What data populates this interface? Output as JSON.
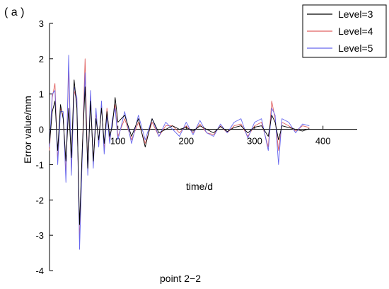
{
  "panel_label": "( a )",
  "chart_data": {
    "type": "line",
    "title": "point 2−2",
    "xlabel": "time/d",
    "ylabel": "Error value/mm",
    "xlim": [
      0,
      450
    ],
    "ylim": [
      -4,
      3
    ],
    "xticks": [
      100,
      200,
      300,
      400
    ],
    "yticks": [
      -4,
      -3,
      -2,
      -1,
      0,
      1,
      2,
      3
    ],
    "xtick_labels": [
      "100",
      "200",
      "300",
      "400"
    ],
    "ytick_labels": [
      "-4",
      "-3",
      "-2",
      "-1",
      "0",
      "1",
      "2",
      "3"
    ],
    "grid": false,
    "legend_position": "top-right",
    "series": [
      {
        "name": "Level=3",
        "color": "#000000",
        "x": [
          0,
          4,
          8,
          12,
          16,
          20,
          24,
          28,
          32,
          36,
          40,
          44,
          48,
          52,
          56,
          60,
          64,
          68,
          72,
          76,
          80,
          84,
          88,
          92,
          96,
          100,
          110,
          120,
          130,
          140,
          150,
          160,
          170,
          180,
          190,
          200,
          210,
          220,
          230,
          240,
          250,
          260,
          270,
          280,
          290,
          300,
          310,
          320,
          325,
          330,
          335,
          340,
          350,
          360,
          370,
          380
        ],
        "values": [
          -0.4,
          0.5,
          0.8,
          -0.6,
          0.7,
          0.3,
          -0.9,
          0.6,
          -0.8,
          1.4,
          0.6,
          -2.7,
          -0.5,
          1.2,
          -1.1,
          0.8,
          -0.9,
          0.3,
          -0.3,
          0.6,
          -0.4,
          0.5,
          -0.2,
          0.1,
          0.9,
          0.2,
          0.4,
          -0.2,
          0.3,
          -0.5,
          0.3,
          -0.1,
          0.0,
          0.1,
          0.0,
          0.05,
          -0.05,
          0.1,
          0.0,
          -0.1,
          0.08,
          -0.06,
          0.05,
          0.1,
          -0.1,
          0.06,
          0.1,
          -0.2,
          0.4,
          0.2,
          -0.3,
          0.1,
          0.05,
          0.0,
          -0.05,
          0.02
        ]
      },
      {
        "name": "Level=4",
        "color": "#e06060",
        "x": [
          0,
          4,
          8,
          12,
          16,
          20,
          24,
          28,
          32,
          36,
          40,
          44,
          48,
          52,
          56,
          60,
          64,
          68,
          72,
          76,
          80,
          84,
          88,
          92,
          96,
          100,
          110,
          120,
          130,
          140,
          150,
          160,
          170,
          180,
          190,
          200,
          210,
          220,
          230,
          240,
          250,
          260,
          270,
          280,
          290,
          300,
          310,
          320,
          325,
          330,
          335,
          340,
          350,
          360,
          370,
          380
        ],
        "values": [
          -0.6,
          0.9,
          1.3,
          -0.9,
          0.6,
          0.4,
          -1.3,
          1.8,
          -1.2,
          1.1,
          0.8,
          -3.2,
          -0.6,
          2.0,
          -1.2,
          1.0,
          -1.0,
          0.5,
          -0.4,
          0.7,
          -0.6,
          0.6,
          -0.3,
          0.2,
          0.7,
          -0.2,
          0.3,
          -0.3,
          0.2,
          -0.4,
          0.2,
          -0.2,
          0.1,
          0.1,
          -0.1,
          0.1,
          -0.1,
          0.15,
          -0.1,
          -0.15,
          0.1,
          -0.1,
          0.1,
          0.15,
          -0.2,
          0.1,
          0.2,
          -0.5,
          0.8,
          0.3,
          -0.6,
          0.2,
          0.1,
          -0.05,
          0.1,
          0.05
        ]
      },
      {
        "name": "Level=5",
        "color": "#6666ee",
        "x": [
          0,
          4,
          8,
          12,
          16,
          20,
          24,
          28,
          32,
          36,
          40,
          44,
          48,
          52,
          56,
          60,
          64,
          68,
          72,
          76,
          80,
          84,
          88,
          92,
          96,
          100,
          110,
          120,
          130,
          140,
          150,
          160,
          170,
          180,
          190,
          200,
          210,
          220,
          230,
          240,
          250,
          260,
          270,
          280,
          290,
          300,
          310,
          320,
          325,
          330,
          335,
          340,
          350,
          360,
          370,
          380
        ],
        "values": [
          -0.5,
          1.0,
          1.1,
          -1.0,
          0.5,
          0.5,
          -1.5,
          2.1,
          -1.3,
          1.2,
          0.9,
          -3.4,
          -0.7,
          1.6,
          -1.3,
          1.1,
          -1.1,
          0.6,
          -0.5,
          0.8,
          -0.7,
          0.4,
          -0.4,
          0.3,
          0.6,
          -0.3,
          0.5,
          -0.4,
          0.4,
          -0.3,
          0.3,
          -0.2,
          0.2,
          0.0,
          -0.2,
          0.2,
          -0.15,
          0.25,
          -0.1,
          -0.2,
          0.15,
          -0.1,
          0.2,
          0.3,
          -0.25,
          0.2,
          0.3,
          -0.6,
          0.6,
          0.4,
          -1.0,
          0.3,
          0.2,
          -0.1,
          0.15,
          0.1
        ]
      }
    ]
  }
}
